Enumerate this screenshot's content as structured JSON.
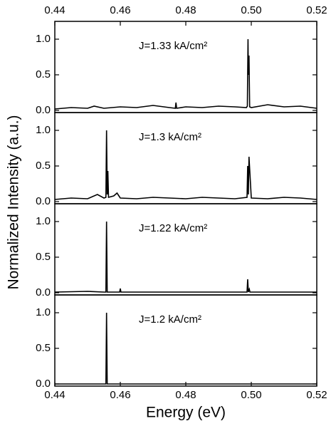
{
  "y_label": "Normalized Intensity (a.u.)",
  "x_label": "Energy (eV)",
  "chart_data": [
    {
      "type": "line",
      "annotation": "J=1.33 kA/cm²",
      "color": "#000000",
      "x": [
        0.44,
        0.445,
        0.45,
        0.452,
        0.455,
        0.46,
        0.465,
        0.47,
        0.475,
        0.4768,
        0.477,
        0.4772,
        0.48,
        0.485,
        0.49,
        0.495,
        0.4985,
        0.4988,
        0.499,
        0.4991,
        0.4993,
        0.4995,
        0.5,
        0.505,
        0.51,
        0.515,
        0.52
      ],
      "values": [
        0.02,
        0.04,
        0.03,
        0.06,
        0.03,
        0.05,
        0.04,
        0.07,
        0.04,
        0.03,
        0.11,
        0.03,
        0.05,
        0.04,
        0.06,
        0.05,
        0.04,
        0.06,
        1.0,
        0.5,
        0.77,
        0.05,
        0.04,
        0.08,
        0.05,
        0.06,
        0.03
      ],
      "xlim": [
        0.44,
        0.52
      ],
      "xticks": [
        0.44,
        0.46,
        0.48,
        {
          "value": 0.5,
          "label": "0.50"
        },
        0.52
      ],
      "xtick_side": "top",
      "ylim": [
        -0.03,
        1.25
      ],
      "yticks": [
        {
          "value": 0,
          "label": "0.0"
        },
        0.5,
        {
          "value": 1,
          "label": "1.0"
        }
      ]
    },
    {
      "type": "line",
      "annotation": "J=1.3 kA/cm²",
      "color": "#000000",
      "x": [
        0.44,
        0.445,
        0.45,
        0.453,
        0.455,
        0.4556,
        0.4558,
        0.456,
        0.4562,
        0.4564,
        0.458,
        0.459,
        0.46,
        0.465,
        0.47,
        0.475,
        0.48,
        0.485,
        0.49,
        0.495,
        0.4987,
        0.4989,
        0.4991,
        0.4993,
        0.5,
        0.505,
        0.51,
        0.515,
        0.52
      ],
      "values": [
        0.03,
        0.05,
        0.04,
        0.1,
        0.05,
        0.06,
        1.0,
        0.1,
        0.43,
        0.06,
        0.08,
        0.12,
        0.05,
        0.04,
        0.06,
        0.05,
        0.04,
        0.06,
        0.05,
        0.04,
        0.06,
        0.5,
        0.1,
        0.63,
        0.05,
        0.04,
        0.06,
        0.05,
        0.03
      ],
      "xlim": [
        0.44,
        0.52
      ],
      "ylim": [
        -0.03,
        1.25
      ],
      "yticks": [
        {
          "value": 0,
          "label": "0.0"
        },
        0.5,
        {
          "value": 1,
          "label": "1.0"
        }
      ]
    },
    {
      "type": "line",
      "annotation": "J=1.22 kA/cm²",
      "color": "#000000",
      "x": [
        0.44,
        0.45,
        0.455,
        0.4556,
        0.4558,
        0.456,
        0.459,
        0.4598,
        0.46,
        0.4602,
        0.47,
        0.48,
        0.49,
        0.4987,
        0.4989,
        0.4991,
        0.4994,
        0.4996,
        0.5,
        0.51,
        0.52
      ],
      "values": [
        0.01,
        0.02,
        0.01,
        0.01,
        1.0,
        0.01,
        0.01,
        0.01,
        0.06,
        0.01,
        0.01,
        0.01,
        0.01,
        0.01,
        0.19,
        0.01,
        0.05,
        0.01,
        0.01,
        0.01,
        0.01
      ],
      "xlim": [
        0.44,
        0.52
      ],
      "ylim": [
        -0.03,
        1.25
      ],
      "yticks": [
        {
          "value": 0,
          "label": "0.0"
        },
        0.5,
        {
          "value": 1,
          "label": "1.0"
        }
      ]
    },
    {
      "type": "line",
      "annotation": "J=1.2 kA/cm²",
      "color": "#000000",
      "x": [
        0.44,
        0.4556,
        0.4558,
        0.456,
        0.52
      ],
      "values": [
        0,
        0,
        1.0,
        0,
        0
      ],
      "xlim": [
        0.44,
        0.52
      ],
      "xticks": [
        0.44,
        0.46,
        0.48,
        {
          "value": 0.5,
          "label": "0.50"
        },
        0.52
      ],
      "xtick_side": "bottom",
      "ylim": [
        -0.03,
        1.25
      ],
      "yticks": [
        {
          "value": 0,
          "label": "0.0"
        },
        0.5,
        {
          "value": 1,
          "label": "1.0"
        }
      ]
    }
  ]
}
